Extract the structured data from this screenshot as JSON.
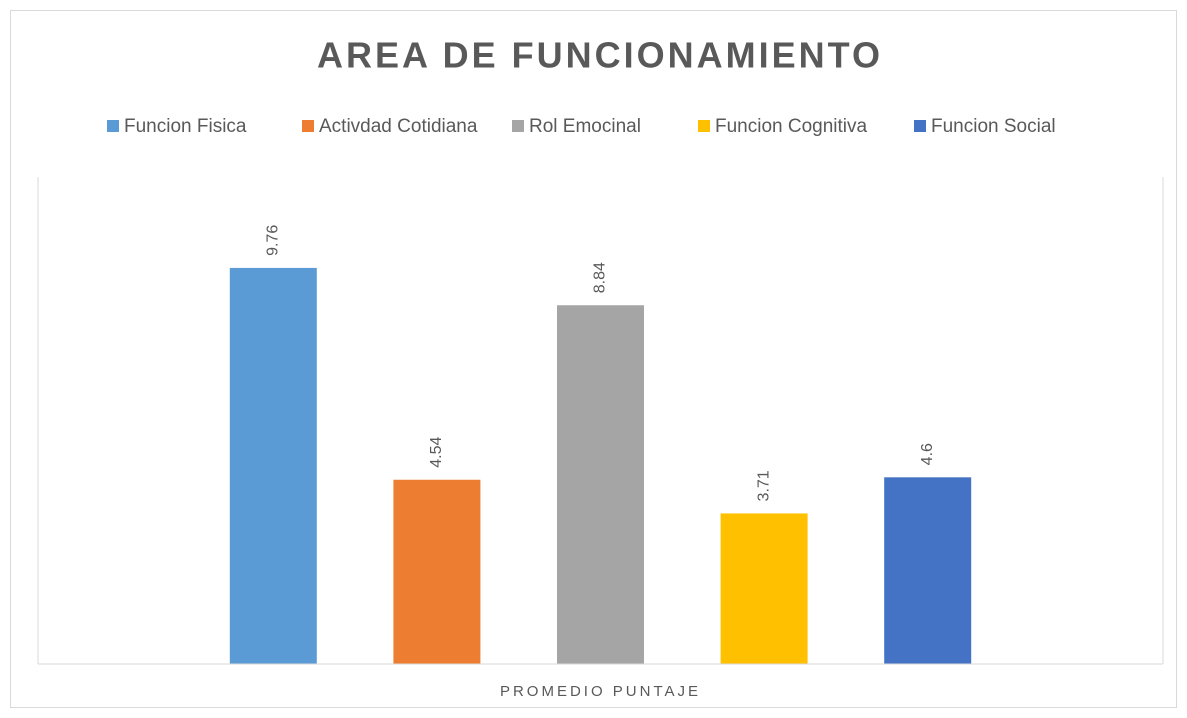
{
  "chart_data": {
    "type": "bar",
    "title": "AREA DE FUNCIONAMIENTO",
    "categories": [
      "PROMEDIO PUNTAJE"
    ],
    "series": [
      {
        "name": "Funcion Fisica",
        "color": "#5b9bd5",
        "values": [
          9.76
        ]
      },
      {
        "name": "Activdad Cotidiana",
        "color": "#ed7d31",
        "values": [
          4.54
        ]
      },
      {
        "name": "Rol Emocinal",
        "color": "#a5a5a5",
        "values": [
          8.84
        ]
      },
      {
        "name": "Funcion Cognitiva",
        "color": "#ffc000",
        "values": [
          3.71
        ]
      },
      {
        "name": "Funcion Social",
        "color": "#4472c4",
        "values": [
          4.6
        ]
      }
    ],
    "ylim": [
      0,
      12
    ],
    "legend": "top"
  }
}
